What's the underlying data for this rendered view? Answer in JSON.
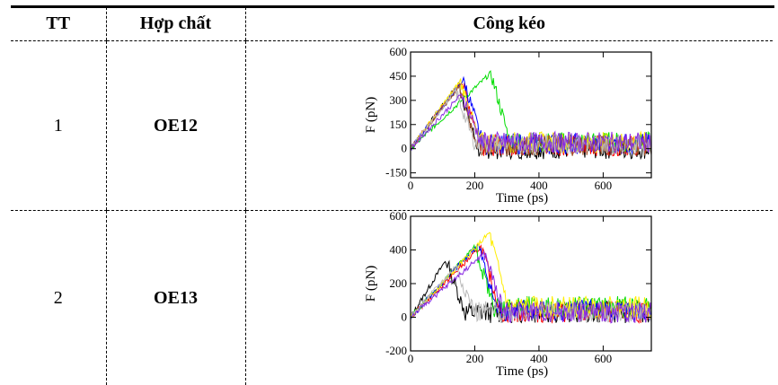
{
  "header_fragment": "",
  "table": {
    "headers": [
      "TT",
      "Hợp chất",
      "Công kéo"
    ],
    "rows": [
      {
        "tt": "1",
        "compound": "OE12"
      },
      {
        "tt": "2",
        "compound": "OE13"
      }
    ]
  },
  "colors": {
    "black": "#000000",
    "red": "#ff0000",
    "green": "#00dd00",
    "blue": "#0000ff",
    "yellow": "#ffee00",
    "brown": "#a0522d",
    "grey": "#bbbbbb",
    "violet": "#8a2be2",
    "magenta": "#cc00cc"
  },
  "chart_data": [
    {
      "type": "line",
      "xlabel": "Time (ps)",
      "ylabel": "F (pN)",
      "xlim": [
        0,
        750
      ],
      "ylim": [
        -180,
        600
      ],
      "x_ticks": [
        0,
        200,
        400,
        600
      ],
      "y_ticks": [
        -150,
        0,
        150,
        300,
        450,
        600
      ],
      "series": [
        {
          "color": "#000000",
          "peak_x": 150,
          "peak_y": 400,
          "baseline": 0
        },
        {
          "color": "#ff0000",
          "peak_x": 160,
          "peak_y": 420,
          "baseline": 20
        },
        {
          "color": "#00dd00",
          "peak_x": 250,
          "peak_y": 470,
          "baseline": 40
        },
        {
          "color": "#0000ff",
          "peak_x": 165,
          "peak_y": 430,
          "baseline": 30
        },
        {
          "color": "#ffee00",
          "peak_x": 155,
          "peak_y": 420,
          "baseline": 40
        },
        {
          "color": "#a0522d",
          "peak_x": 150,
          "peak_y": 380,
          "baseline": 20
        },
        {
          "color": "#bbbbbb",
          "peak_x": 140,
          "peak_y": 360,
          "baseline": 30
        },
        {
          "color": "#8a2be2",
          "peak_x": 160,
          "peak_y": 340,
          "baseline": 40
        }
      ]
    },
    {
      "type": "line",
      "xlabel": "Time (ps)",
      "ylabel": "F (pN)",
      "xlim": [
        0,
        750
      ],
      "ylim": [
        -200,
        600
      ],
      "x_ticks": [
        0,
        200,
        400,
        600
      ],
      "y_ticks": [
        -200,
        0,
        200,
        400,
        600
      ],
      "series": [
        {
          "color": "#000000",
          "peak_x": 110,
          "peak_y": 340,
          "baseline": 30
        },
        {
          "color": "#ff0000",
          "peak_x": 220,
          "peak_y": 420,
          "baseline": 30
        },
        {
          "color": "#00dd00",
          "peak_x": 200,
          "peak_y": 420,
          "baseline": 60
        },
        {
          "color": "#0000ff",
          "peak_x": 210,
          "peak_y": 430,
          "baseline": 40
        },
        {
          "color": "#ffee00",
          "peak_x": 245,
          "peak_y": 500,
          "baseline": 60
        },
        {
          "color": "#bbbbbb",
          "peak_x": 140,
          "peak_y": 300,
          "baseline": 30
        },
        {
          "color": "#8a2be2",
          "peak_x": 230,
          "peak_y": 380,
          "baseline": 30
        }
      ]
    }
  ]
}
